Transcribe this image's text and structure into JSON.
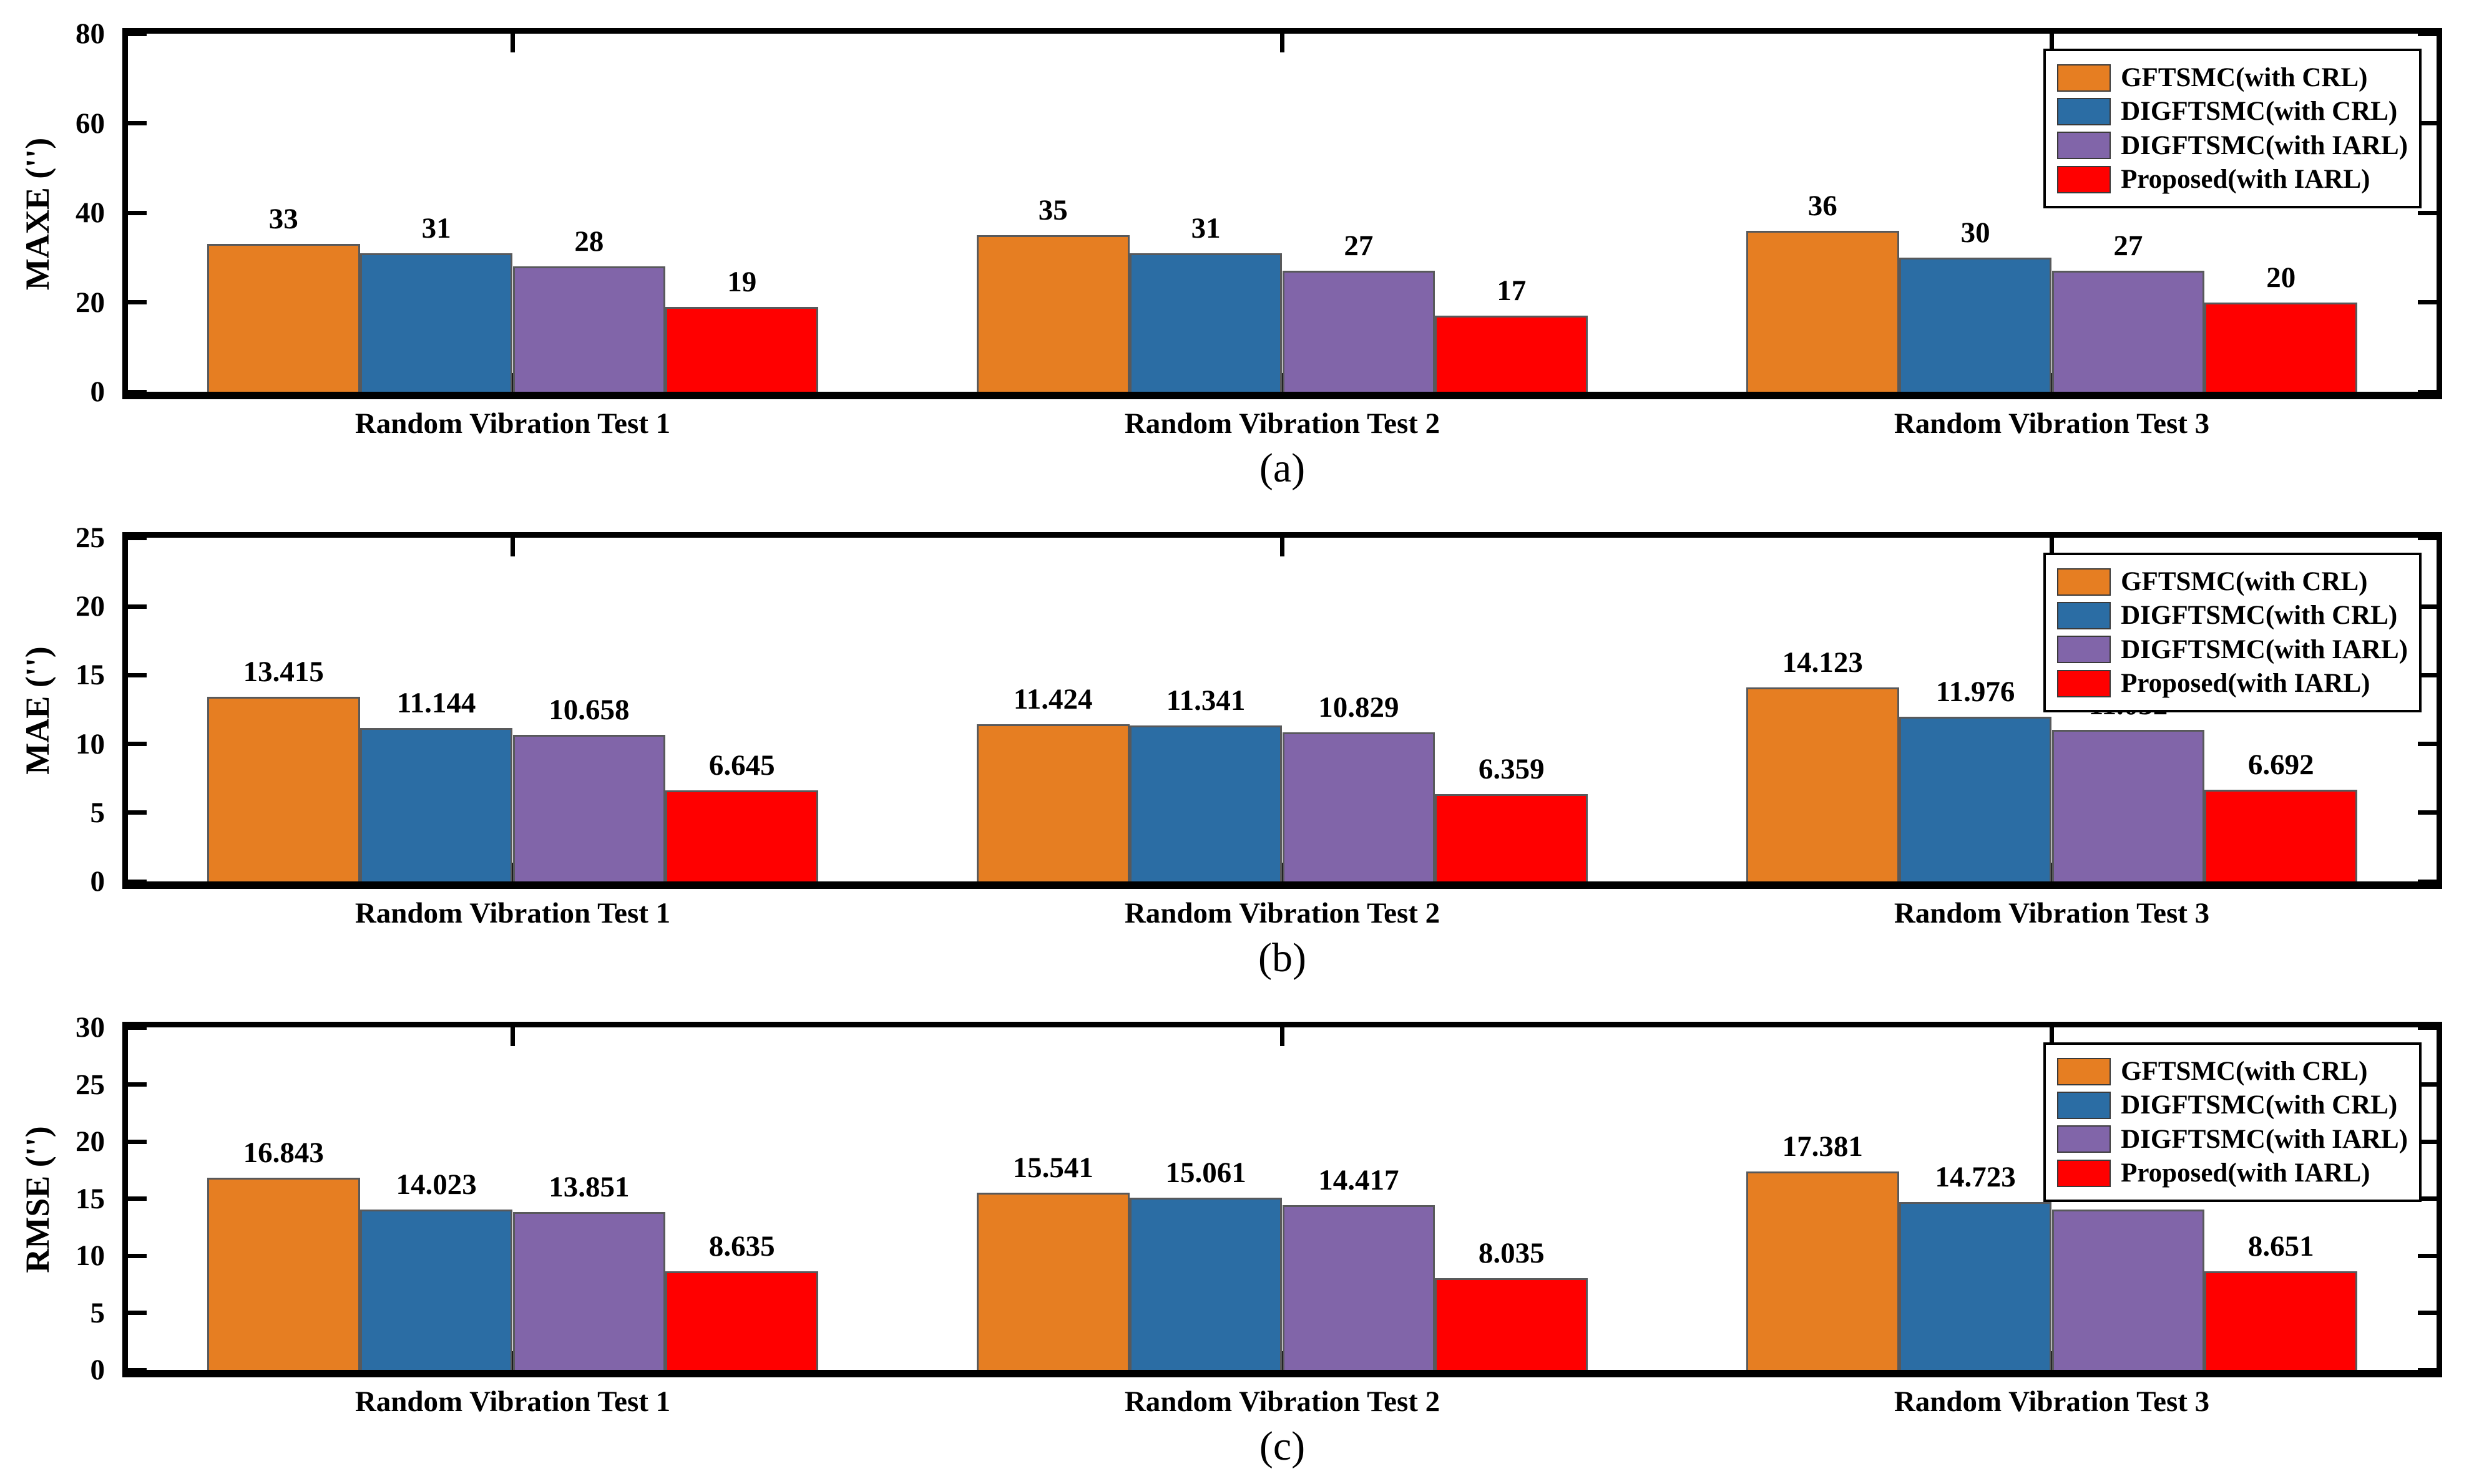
{
  "figure": {
    "background": "#ffffff",
    "categories": [
      "Random Vibration Test 1",
      "Random Vibration Test 2",
      "Random Vibration Test 3"
    ],
    "panel_letters": [
      "(a)",
      "(b)",
      "(c)"
    ]
  },
  "colors": {
    "gftsmc_crl": "#E67E22",
    "digftsmc_crl": "#2B6DA4",
    "digftsmc_iarl": "#8165A9",
    "proposed_iarl": "#FF0000",
    "frame": "#000000"
  },
  "legend": {
    "position": "top-right",
    "items": [
      {
        "label": "GFTSMC(with CRL)",
        "color": "#E67E22"
      },
      {
        "label": "DIGFTSMC(with CRL)",
        "color": "#2B6DA4"
      },
      {
        "label": "DIGFTSMC(with IARL)",
        "color": "#8165A9"
      },
      {
        "label": "Proposed(with IARL)",
        "color": "#FF0000"
      }
    ]
  },
  "chart_data": [
    {
      "type": "bar",
      "panel_label": "(a)",
      "ylabel": "MAXE ('')",
      "xlabel": "",
      "ylim": [
        0,
        80
      ],
      "yticks": [
        0,
        20,
        40,
        60,
        80
      ],
      "grid": false,
      "legend_position": "top-right",
      "categories": [
        "Random Vibration Test 1",
        "Random Vibration Test 2",
        "Random Vibration Test 3"
      ],
      "series": [
        {
          "name": "GFTSMC(with CRL)",
          "color": "#E67E22",
          "values": [
            33,
            35,
            36
          ]
        },
        {
          "name": "DIGFTSMC(with CRL)",
          "color": "#2B6DA4",
          "values": [
            31,
            31,
            30
          ]
        },
        {
          "name": "DIGFTSMC(with IARL)",
          "color": "#8165A9",
          "values": [
            28,
            27,
            27
          ]
        },
        {
          "name": "Proposed(with IARL)",
          "color": "#FF0000",
          "values": [
            19,
            17,
            20
          ]
        }
      ]
    },
    {
      "type": "bar",
      "panel_label": "(b)",
      "ylabel": "MAE ('')",
      "xlabel": "",
      "ylim": [
        0,
        25
      ],
      "yticks": [
        0,
        5,
        10,
        15,
        20,
        25
      ],
      "grid": false,
      "legend_position": "top-right",
      "categories": [
        "Random Vibration Test 1",
        "Random Vibration Test 2",
        "Random Vibration Test 3"
      ],
      "series": [
        {
          "name": "GFTSMC(with CRL)",
          "color": "#E67E22",
          "values": [
            13.415,
            11.424,
            14.123
          ]
        },
        {
          "name": "DIGFTSMC(with CRL)",
          "color": "#2B6DA4",
          "values": [
            11.144,
            11.341,
            11.976
          ]
        },
        {
          "name": "DIGFTSMC(with IARL)",
          "color": "#8165A9",
          "values": [
            10.658,
            10.829,
            11.032
          ]
        },
        {
          "name": "Proposed(with IARL)",
          "color": "#FF0000",
          "values": [
            6.645,
            6.359,
            6.692
          ]
        }
      ]
    },
    {
      "type": "bar",
      "panel_label": "(c)",
      "ylabel": "RMSE ('')",
      "xlabel": "",
      "ylim": [
        0,
        30
      ],
      "yticks": [
        0,
        5,
        10,
        15,
        20,
        25,
        30
      ],
      "grid": false,
      "legend_position": "top-right",
      "categories": [
        "Random Vibration Test 1",
        "Random Vibration Test 2",
        "Random Vibration Test 3"
      ],
      "series": [
        {
          "name": "GFTSMC(with CRL)",
          "color": "#E67E22",
          "values": [
            16.843,
            15.541,
            17.381
          ]
        },
        {
          "name": "DIGFTSMC(with CRL)",
          "color": "#2B6DA4",
          "values": [
            14.023,
            15.061,
            14.723
          ]
        },
        {
          "name": "DIGFTSMC(with IARL)",
          "color": "#8165A9",
          "values": [
            13.851,
            14.417,
            14.052
          ]
        },
        {
          "name": "Proposed(with IARL)",
          "color": "#FF0000",
          "values": [
            8.635,
            8.035,
            8.651
          ]
        }
      ]
    }
  ]
}
